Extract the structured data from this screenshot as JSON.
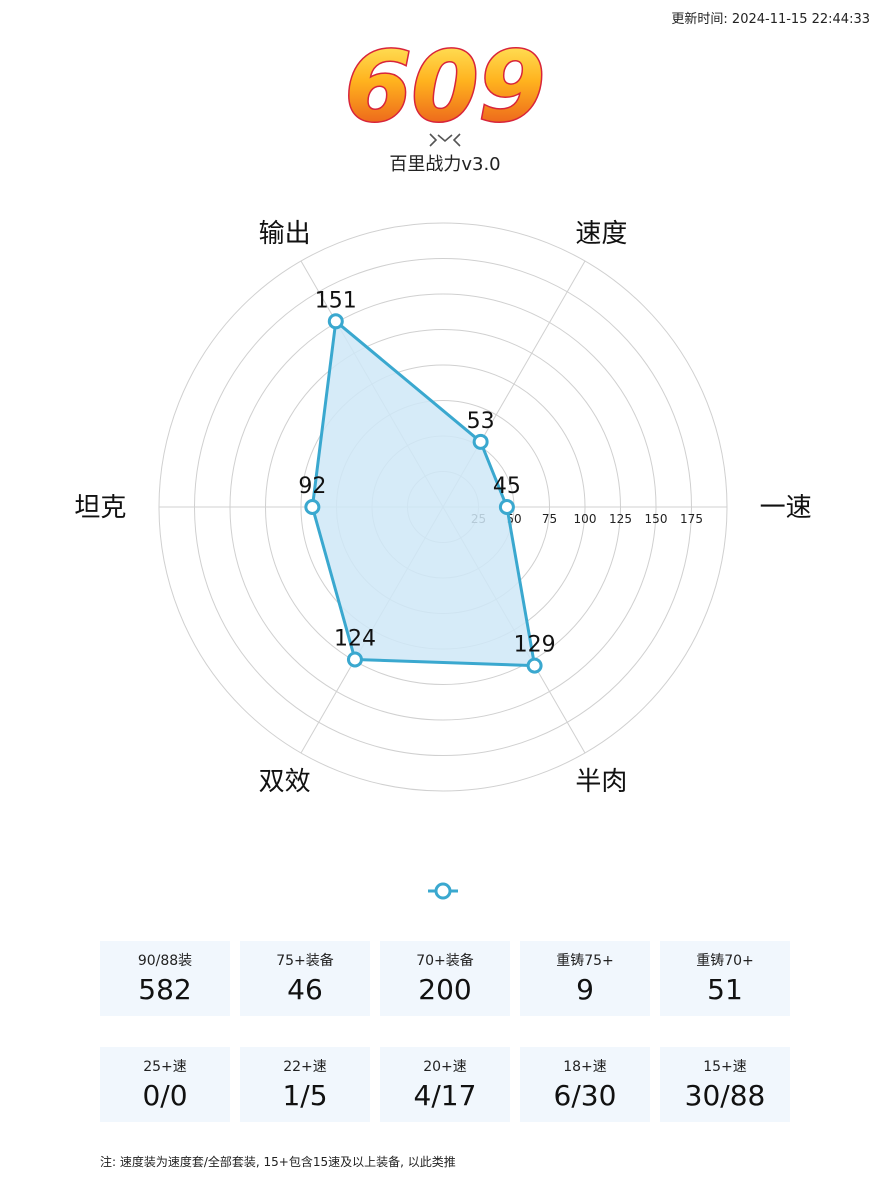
{
  "header": {
    "update_label": "更新时间:",
    "update_time": "2024-11-15 22:44:33"
  },
  "score": {
    "value": "609",
    "subtitle": "百里战力v3.0"
  },
  "chart_data": {
    "type": "radar",
    "axes": [
      "一速",
      "速度",
      "输出",
      "坦克",
      "双效",
      "半肉"
    ],
    "values": [
      45,
      53,
      151,
      92,
      124,
      129
    ],
    "value_labels": [
      "45",
      "53",
      "151",
      "92",
      "124",
      "129"
    ],
    "rlim": [
      0,
      200
    ],
    "ring_ticks": [
      25,
      50,
      75,
      100,
      125,
      150,
      175,
      200
    ],
    "tick_labels": [
      "25",
      "50",
      "75",
      "100",
      "125",
      "150",
      "175"
    ],
    "grid": true,
    "colors": {
      "line": "#3aa8cf",
      "fill": "#cfe8f7",
      "grid": "#d0d0d0"
    }
  },
  "stats_row1": [
    {
      "label": "90/88装",
      "value": "582"
    },
    {
      "label": "75+装备",
      "value": "46"
    },
    {
      "label": "70+装备",
      "value": "200"
    },
    {
      "label": "重铸75+",
      "value": "9"
    },
    {
      "label": "重铸70+",
      "value": "51"
    }
  ],
  "stats_row2": [
    {
      "label": "25+速",
      "value": "0/0"
    },
    {
      "label": "22+速",
      "value": "1/5"
    },
    {
      "label": "20+速",
      "value": "4/17"
    },
    {
      "label": "18+速",
      "value": "6/30"
    },
    {
      "label": "15+速",
      "value": "30/88"
    }
  ],
  "note": "注: 速度装为速度套/全部套装, 15+包含15速及以上装备, 以此类推"
}
